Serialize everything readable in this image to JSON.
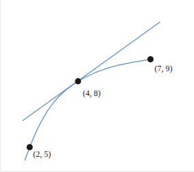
{
  "chart_data": {
    "type": "line",
    "tick_labels": false,
    "xlim": [
      0.8,
      8.8
    ],
    "ylim": [
      3.9,
      11.7
    ],
    "series": [
      {
        "type": "line",
        "line_style": "curve",
        "color": "#5b8ec9",
        "x": [
          1.8,
          2,
          4,
          7
        ],
        "values": [
          4.4,
          5,
          8,
          9
        ]
      },
      {
        "type": "line",
        "line_style": "straight",
        "color": "#5b8ec9",
        "x": [
          1.7,
          7.4
        ],
        "values": [
          6.2,
          10.7
        ]
      },
      {
        "type": "scatter",
        "marker": "circle",
        "color": "#1a1a1a",
        "data_labels": true,
        "x": [
          2,
          4,
          7
        ],
        "values": [
          5,
          8,
          9
        ],
        "value_labels": [
          "(2, 5)",
          "(4, 8)",
          "(7, 9)"
        ]
      }
    ]
  }
}
